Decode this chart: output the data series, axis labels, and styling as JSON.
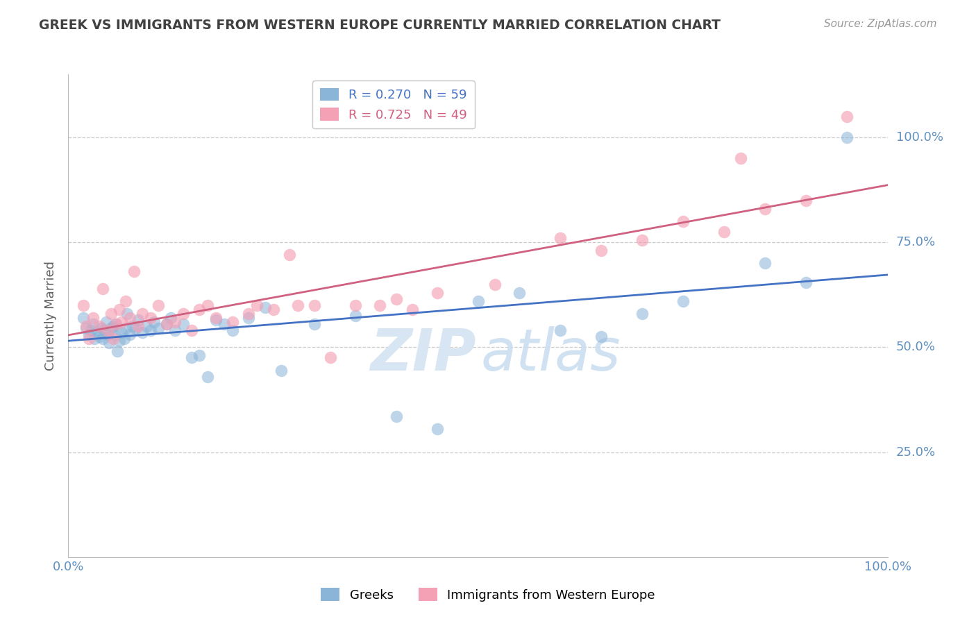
{
  "title": "GREEK VS IMMIGRANTS FROM WESTERN EUROPE CURRENTLY MARRIED CORRELATION CHART",
  "source": "Source: ZipAtlas.com",
  "ylabel": "Currently Married",
  "series1_label": "Greeks",
  "series2_label": "Immigrants from Western Europe",
  "series1_color": "#8ab4d8",
  "series2_color": "#f4a0b5",
  "series1_R": 0.27,
  "series1_N": 59,
  "series2_R": 0.725,
  "series2_N": 49,
  "series1_line_color": "#4472c4",
  "series2_line_color": "#d06080",
  "background_color": "#ffffff",
  "grid_color": "#cccccc",
  "title_color": "#404040",
  "ylabel_color": "#606060",
  "tick_label_color": "#6090c0",
  "watermark_color": "#dde8f5",
  "series1_x": [
    0.018,
    0.022,
    0.025,
    0.028,
    0.03,
    0.032,
    0.035,
    0.038,
    0.04,
    0.042,
    0.044,
    0.046,
    0.048,
    0.05,
    0.052,
    0.055,
    0.057,
    0.058,
    0.06,
    0.062,
    0.065,
    0.068,
    0.07,
    0.072,
    0.075,
    0.078,
    0.082,
    0.085,
    0.09,
    0.095,
    0.1,
    0.105,
    0.11,
    0.12,
    0.125,
    0.13,
    0.14,
    0.15,
    0.16,
    0.17,
    0.18,
    0.19,
    0.2,
    0.22,
    0.24,
    0.26,
    0.3,
    0.35,
    0.4,
    0.45,
    0.5,
    0.55,
    0.6,
    0.65,
    0.7,
    0.75,
    0.85,
    0.9,
    0.95
  ],
  "series1_y": [
    0.57,
    0.545,
    0.53,
    0.54,
    0.555,
    0.52,
    0.535,
    0.525,
    0.545,
    0.52,
    0.54,
    0.56,
    0.53,
    0.51,
    0.545,
    0.55,
    0.53,
    0.555,
    0.49,
    0.515,
    0.535,
    0.52,
    0.545,
    0.58,
    0.53,
    0.55,
    0.545,
    0.565,
    0.535,
    0.55,
    0.54,
    0.56,
    0.545,
    0.555,
    0.57,
    0.54,
    0.555,
    0.475,
    0.48,
    0.43,
    0.565,
    0.555,
    0.54,
    0.57,
    0.595,
    0.445,
    0.555,
    0.575,
    0.335,
    0.305,
    0.61,
    0.63,
    0.54,
    0.525,
    0.58,
    0.61,
    0.7,
    0.655,
    1.0
  ],
  "series2_x": [
    0.018,
    0.022,
    0.025,
    0.03,
    0.038,
    0.042,
    0.048,
    0.052,
    0.055,
    0.058,
    0.062,
    0.065,
    0.07,
    0.075,
    0.08,
    0.085,
    0.09,
    0.1,
    0.11,
    0.12,
    0.13,
    0.14,
    0.15,
    0.16,
    0.17,
    0.18,
    0.2,
    0.22,
    0.23,
    0.25,
    0.27,
    0.28,
    0.3,
    0.32,
    0.35,
    0.38,
    0.4,
    0.42,
    0.45,
    0.52,
    0.6,
    0.65,
    0.7,
    0.75,
    0.8,
    0.82,
    0.85,
    0.9,
    0.95
  ],
  "series2_y": [
    0.6,
    0.55,
    0.52,
    0.57,
    0.55,
    0.64,
    0.54,
    0.58,
    0.52,
    0.555,
    0.59,
    0.56,
    0.61,
    0.57,
    0.68,
    0.55,
    0.58,
    0.57,
    0.6,
    0.555,
    0.56,
    0.58,
    0.54,
    0.59,
    0.6,
    0.57,
    0.56,
    0.58,
    0.6,
    0.59,
    0.72,
    0.6,
    0.6,
    0.475,
    0.6,
    0.6,
    0.615,
    0.59,
    0.63,
    0.65,
    0.76,
    0.73,
    0.755,
    0.8,
    0.775,
    0.95,
    0.83,
    0.85,
    1.05
  ]
}
